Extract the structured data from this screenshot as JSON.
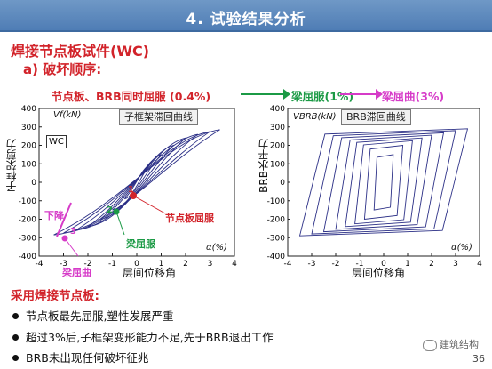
{
  "banner": {
    "title": "4. 试验结果分析"
  },
  "heading": {
    "specimen": "焊接节点板试件(WC)",
    "sub": "a) 破坏顺序:"
  },
  "sequence": {
    "step1": "节点板、BRB同时屈服 (0.4%)",
    "step2": "梁屈服(1%)",
    "step3": "梁屈曲(3%)"
  },
  "colors": {
    "accent_red": "#d2232a",
    "green": "#1b9a45",
    "magenta": "#d63bc8",
    "banner": "#4f7db5",
    "curve": "#2b2f86"
  },
  "left_chart": {
    "tag": "子框架滞回曲线",
    "ylabel": "子框架剪力",
    "xlabel": "层间位移角",
    "y_unit": "Vf(kN)",
    "x_unit": "α(%)",
    "specimen_box": "WC",
    "x_ticks": [
      "-4",
      "-3",
      "-2",
      "-1",
      "0",
      "1",
      "2",
      "3",
      "4"
    ],
    "y_ticks": [
      "400",
      "300",
      "200",
      "100",
      "0",
      "-100",
      "-200",
      "-300",
      "-400"
    ],
    "annotations": {
      "gusset_yield": "节点板屈服",
      "beam_yield": "梁屈服",
      "beam_buckle": "梁屈曲",
      "drop": "下降",
      "m1": "1",
      "m2": "2",
      "m3": "3"
    }
  },
  "right_chart": {
    "tag": "BRB滞回曲线",
    "ylabel": "BRB水平力",
    "xlabel": "层间位移角",
    "y_unit": "VBRB(kN)",
    "x_unit": "α(%)",
    "x_ticks": [
      "-4",
      "-3",
      "-2",
      "-1",
      "0",
      "1",
      "2",
      "3",
      "4"
    ],
    "y_ticks": [
      "400",
      "300",
      "200",
      "100",
      "0",
      "-100",
      "-200",
      "-300",
      "-400"
    ]
  },
  "notes": {
    "head": "采用焊接节点板:",
    "items": [
      "节点板最先屈服,塑性发展严重",
      "超过3%后,子框架变形能力不足,先于BRB退出工作",
      "BRB未出现任何破坏征兆"
    ]
  },
  "watermark": "建筑结构",
  "page_number": "36"
}
